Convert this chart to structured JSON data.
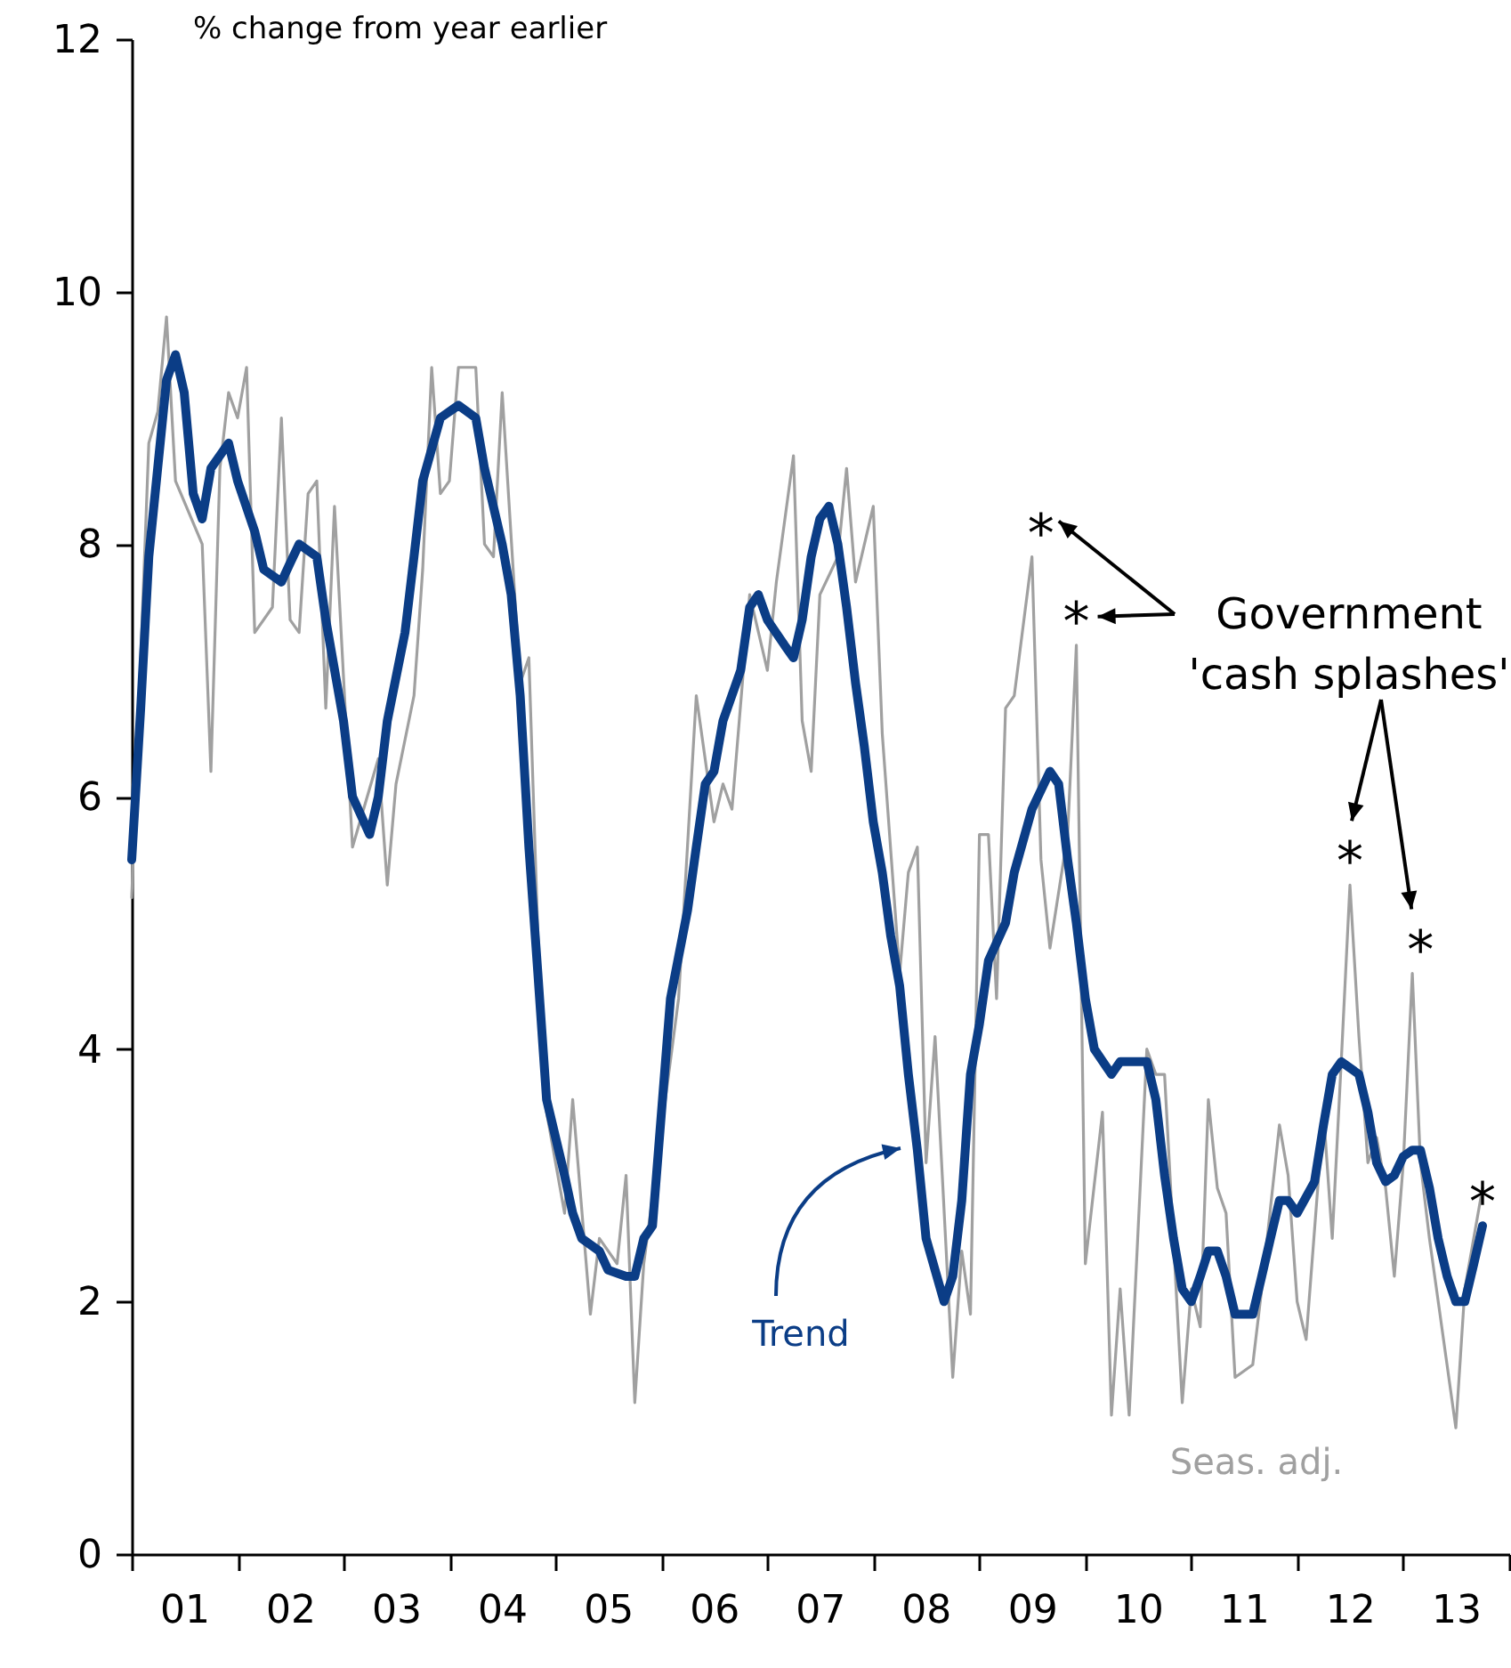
{
  "chart_data": {
    "type": "line",
    "ylabel": "% change from year earlier",
    "xlim": [
      "2001",
      "2014"
    ],
    "ylim": [
      0,
      12
    ],
    "yticks": [
      0,
      2,
      4,
      6,
      8,
      10,
      12
    ],
    "xticks": [
      {
        "value": "2001",
        "label": null
      },
      {
        "value": "2001-07",
        "label": "01"
      },
      {
        "value": "2002",
        "label": null
      },
      {
        "value": "2002-07",
        "label": "02"
      },
      {
        "value": "2003",
        "label": null
      },
      {
        "value": "2003-07",
        "label": "03"
      },
      {
        "value": "2004",
        "label": null
      },
      {
        "value": "2004-07",
        "label": "04"
      },
      {
        "value": "2005",
        "label": null
      },
      {
        "value": "2005-07",
        "label": "05"
      },
      {
        "value": "2006",
        "label": null
      },
      {
        "value": "2006-07",
        "label": "06"
      },
      {
        "value": "2007",
        "label": null
      },
      {
        "value": "2007-07",
        "label": "07"
      },
      {
        "value": "2008",
        "label": null
      },
      {
        "value": "2008-07",
        "label": "08"
      },
      {
        "value": "2009",
        "label": null
      },
      {
        "value": "2009-07",
        "label": "09"
      },
      {
        "value": "2010",
        "label": null
      },
      {
        "value": "2010-07",
        "label": "10"
      },
      {
        "value": "2011",
        "label": null
      },
      {
        "value": "2011-07",
        "label": "11"
      },
      {
        "value": "2012",
        "label": null
      },
      {
        "value": "2012-07",
        "label": "12"
      },
      {
        "value": "2013",
        "label": null
      },
      {
        "value": "2013-07",
        "label": "13"
      },
      {
        "value": "2014",
        "label": null
      }
    ],
    "series": [
      {
        "name": "Trend",
        "color": "#0b3d86",
        "x": [
          "2001-01",
          "2001-02",
          "2001-03",
          "2001-05",
          "2001-06",
          "2001-07",
          "2001-08",
          "2001-09",
          "2001-10",
          "2001-12",
          "2002-01",
          "2002-03",
          "2002-04",
          "2002-06",
          "2002-07",
          "2002-08",
          "2002-10",
          "2002-11",
          "2003-01",
          "2003-02",
          "2003-04",
          "2003-05",
          "2003-06",
          "2003-08",
          "2003-09",
          "2003-10",
          "2003-12",
          "2004-02",
          "2004-04",
          "2004-05",
          "2004-07",
          "2004-08",
          "2004-09",
          "2004-10",
          "2004-11",
          "2004-12",
          "2005-02",
          "2005-03",
          "2005-04",
          "2005-06",
          "2005-07",
          "2005-09",
          "2005-10",
          "2005-11",
          "2005-12",
          "2006-01",
          "2006-02",
          "2006-04",
          "2006-05",
          "2006-06",
          "2006-07",
          "2006-08",
          "2006-10",
          "2006-11",
          "2006-12",
          "2007-01",
          "2007-03",
          "2007-04",
          "2007-05",
          "2007-06",
          "2007-07",
          "2007-08",
          "2007-09",
          "2007-10",
          "2007-11",
          "2007-12",
          "2008-01",
          "2008-02",
          "2008-03",
          "2008-04",
          "2008-05",
          "2008-06",
          "2008-07",
          "2008-09",
          "2008-10",
          "2008-11",
          "2008-12",
          "2009-01",
          "2009-02",
          "2009-04",
          "2009-05",
          "2009-07",
          "2009-09",
          "2009-10",
          "2009-11",
          "2009-12",
          "2010-01",
          "2010-02",
          "2010-04",
          "2010-05",
          "2010-08",
          "2010-09",
          "2010-10",
          "2010-11",
          "2010-12",
          "2011-01",
          "2011-02",
          "2011-03",
          "2011-04",
          "2011-05",
          "2011-06",
          "2011-08",
          "2011-09",
          "2011-10",
          "2011-11",
          "2011-12",
          "2012-01",
          "2012-03",
          "2012-04",
          "2012-05",
          "2012-06",
          "2012-08",
          "2012-09",
          "2012-10",
          "2012-11",
          "2012-12",
          "2013-01",
          "2013-02",
          "2013-03",
          "2013-04",
          "2013-05",
          "2013-06",
          "2013-07",
          "2013-08",
          "2013-09",
          "2013-10"
        ],
        "values": [
          5.5,
          6.7,
          7.9,
          9.3,
          9.5,
          9.2,
          8.4,
          8.2,
          8.6,
          8.8,
          8.5,
          8.1,
          7.8,
          7.7,
          7.85,
          8.0,
          7.9,
          7.4,
          6.6,
          6.0,
          5.7,
          6.0,
          6.6,
          7.3,
          7.9,
          8.5,
          9.0,
          9.1,
          9.0,
          8.6,
          8.0,
          7.6,
          6.8,
          5.6,
          4.6,
          3.6,
          3.0,
          2.7,
          2.5,
          2.4,
          2.25,
          2.2,
          2.2,
          2.5,
          2.6,
          3.5,
          4.4,
          5.1,
          5.6,
          6.1,
          6.2,
          6.6,
          7.0,
          7.5,
          7.6,
          7.4,
          7.2,
          7.1,
          7.4,
          7.9,
          8.2,
          8.3,
          8.0,
          7.5,
          6.9,
          6.4,
          5.8,
          5.4,
          4.9,
          4.5,
          3.8,
          3.2,
          2.5,
          2.0,
          2.2,
          2.8,
          3.8,
          4.2,
          4.7,
          5.0,
          5.4,
          5.9,
          6.2,
          6.1,
          5.5,
          5.0,
          4.4,
          4.0,
          3.8,
          3.9,
          3.9,
          3.6,
          3.0,
          2.5,
          2.1,
          2.0,
          2.2,
          2.4,
          2.4,
          2.2,
          1.9,
          1.9,
          2.2,
          2.5,
          2.8,
          2.8,
          2.7,
          2.95,
          3.4,
          3.8,
          3.9,
          3.8,
          3.5,
          3.1,
          2.95,
          3.0,
          3.15,
          3.2,
          3.2,
          2.9,
          2.5,
          2.2,
          2.0,
          2.0,
          2.3,
          2.6
        ]
      },
      {
        "name": "Seas. adj.",
        "color": "#a0a0a0",
        "x": [
          "2001-01",
          "2001-03",
          "2001-04",
          "2001-05",
          "2001-06",
          "2001-09",
          "2001-10",
          "2001-11",
          "2001-12",
          "2002-01",
          "2002-02",
          "2002-03",
          "2002-05",
          "2002-06",
          "2002-07",
          "2002-08",
          "2002-09",
          "2002-10",
          "2002-11",
          "2002-12",
          "2003-02",
          "2003-05",
          "2003-06",
          "2003-07",
          "2003-09",
          "2003-10",
          "2003-11",
          "2003-12",
          "2004-01",
          "2004-02",
          "2004-04",
          "2004-05",
          "2004-06",
          "2004-07",
          "2004-09",
          "2004-10",
          "2004-11",
          "2004-12",
          "2005-02",
          "2005-03",
          "2005-05",
          "2005-06",
          "2005-08",
          "2005-09",
          "2005-10",
          "2005-11",
          "2006-03",
          "2006-05",
          "2006-07",
          "2006-08",
          "2006-09",
          "2006-11",
          "2007-01",
          "2007-02",
          "2007-04",
          "2007-05",
          "2007-06",
          "2007-07",
          "2007-09",
          "2007-10",
          "2007-11",
          "2008-01",
          "2008-02",
          "2008-04",
          "2008-05",
          "2008-06",
          "2008-07",
          "2008-08",
          "2008-10",
          "2008-11",
          "2008-12",
          "2009-01",
          "2009-02",
          "2009-03",
          "2009-04",
          "2009-05",
          "2009-07",
          "2009-08",
          "2009-09",
          "2009-11",
          "2009-12",
          "2010-01",
          "2010-03",
          "2010-04",
          "2010-05",
          "2010-06",
          "2010-08",
          "2010-09",
          "2010-10",
          "2010-12",
          "2011-01",
          "2011-02",
          "2011-03",
          "2011-04",
          "2011-05",
          "2011-06",
          "2011-08",
          "2011-09",
          "2011-11",
          "2011-12",
          "2012-01",
          "2012-02",
          "2012-04",
          "2012-05",
          "2012-06",
          "2012-07",
          "2012-08",
          "2012-09",
          "2012-10",
          "2012-11",
          "2012-12",
          "2013-01",
          "2013-02",
          "2013-03",
          "2013-04",
          "2013-07",
          "2013-08",
          "2013-10"
        ],
        "values": [
          5.2,
          8.8,
          9.05,
          9.8,
          8.5,
          8.0,
          6.2,
          8.6,
          9.2,
          9.0,
          9.4,
          7.3,
          7.5,
          9.0,
          7.4,
          7.3,
          8.4,
          8.5,
          6.7,
          8.3,
          5.6,
          6.3,
          5.3,
          6.1,
          6.8,
          7.8,
          9.4,
          8.4,
          8.5,
          9.4,
          9.4,
          8.0,
          7.9,
          9.2,
          6.9,
          7.1,
          4.9,
          3.5,
          2.7,
          3.6,
          1.9,
          2.5,
          2.3,
          3.0,
          1.2,
          2.3,
          4.4,
          6.8,
          5.8,
          6.1,
          5.9,
          7.6,
          7.0,
          7.7,
          8.7,
          6.6,
          6.2,
          7.6,
          7.9,
          8.6,
          7.7,
          8.3,
          6.5,
          4.6,
          5.4,
          5.6,
          3.1,
          4.1,
          1.4,
          2.4,
          1.9,
          5.7,
          5.7,
          4.4,
          6.7,
          6.8,
          7.9,
          5.5,
          4.8,
          5.7,
          7.2,
          2.3,
          3.5,
          1.1,
          2.1,
          1.1,
          4.0,
          3.8,
          3.8,
          1.2,
          2.1,
          1.8,
          3.6,
          2.9,
          2.7,
          1.4,
          1.5,
          2.1,
          3.4,
          3.0,
          2.0,
          1.7,
          3.5,
          2.5,
          3.9,
          5.3,
          4.1,
          3.1,
          3.3,
          2.9,
          2.2,
          3.1,
          4.6,
          3.1,
          2.5,
          1.0,
          2.1,
          2.9
        ]
      }
    ],
    "annotations": [
      "Government 'cash splashes'",
      {
        "text": "*",
        "x": "2009-08",
        "y": 7.9
      },
      {
        "text": "*",
        "x": "2009-12",
        "y": 7.2
      },
      {
        "text": "*",
        "x": "2012-07",
        "y": 5.3
      },
      {
        "text": "*",
        "x": "2013-03",
        "y": 4.6
      },
      {
        "text": "*",
        "x": "2013-10",
        "y": 2.6
      }
    ]
  }
}
